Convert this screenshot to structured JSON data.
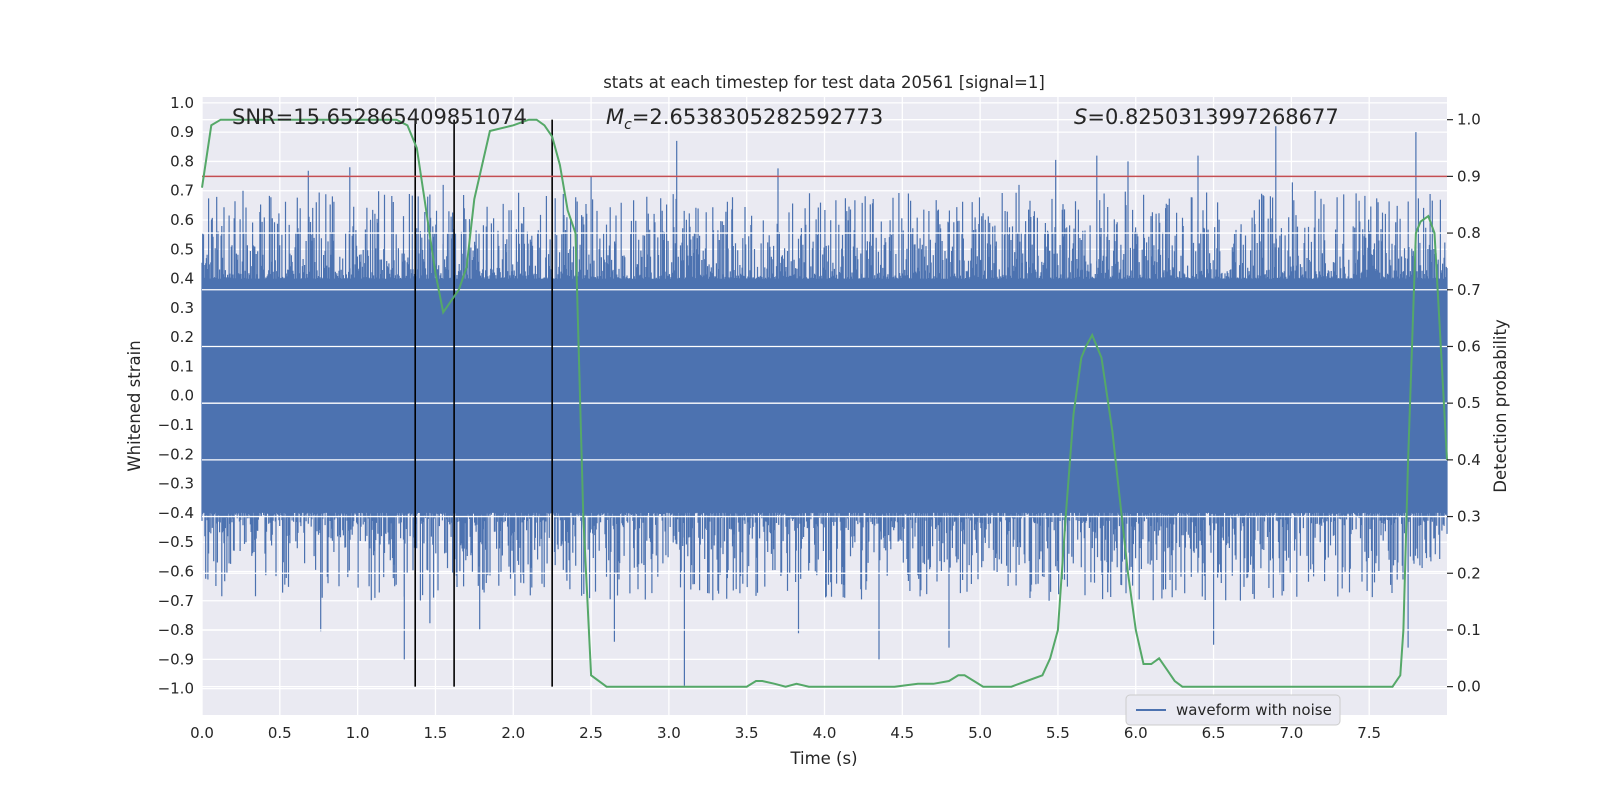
{
  "chart_data": {
    "type": "line",
    "title": "stats at each timestep for test data 20561 [signal=1]",
    "xlabel": "Time (s)",
    "ylabel_left": "Whitened strain",
    "ylabel_right": "Detection probability",
    "xlim": [
      0.0,
      8.0
    ],
    "ylim_left": [
      -1.09,
      1.02
    ],
    "ylim_right": [
      -0.05,
      1.04
    ],
    "x_ticks": [
      "0.0",
      "0.5",
      "1.0",
      "1.5",
      "2.0",
      "2.5",
      "3.0",
      "3.5",
      "4.0",
      "4.5",
      "5.0",
      "5.5",
      "6.0",
      "6.5",
      "7.0",
      "7.5"
    ],
    "x_tick_values": [
      0.0,
      0.5,
      1.0,
      1.5,
      2.0,
      2.5,
      3.0,
      3.5,
      4.0,
      4.5,
      5.0,
      5.5,
      6.0,
      6.5,
      7.0,
      7.5
    ],
    "y_left_ticks": [
      "1.0",
      "0.9",
      "0.8",
      "0.7",
      "0.6",
      "0.5",
      "0.4",
      "0.3",
      "0.2",
      "0.1",
      "0.0",
      "−0.1",
      "−0.2",
      "−0.3",
      "−0.4",
      "−0.5",
      "−0.6",
      "−0.7",
      "−0.8",
      "−0.9",
      "−1.0"
    ],
    "y_left_tick_values": [
      1.0,
      0.9,
      0.8,
      0.7,
      0.6,
      0.5,
      0.4,
      0.3,
      0.2,
      0.1,
      0.0,
      -0.1,
      -0.2,
      -0.3,
      -0.4,
      -0.5,
      -0.6,
      -0.7,
      -0.8,
      -0.9,
      -1.0
    ],
    "y_right_ticks": [
      "1.0",
      "0.9",
      "0.8",
      "0.7",
      "0.6",
      "0.5",
      "0.4",
      "0.3",
      "0.2",
      "0.1",
      "0.0"
    ],
    "y_right_tick_values": [
      1.0,
      0.9,
      0.8,
      0.7,
      0.6,
      0.5,
      0.4,
      0.3,
      0.2,
      0.1,
      0.0
    ],
    "annotations": {
      "snr": "SNR=15.652865409851074",
      "mc_symbol": "M",
      "mc_sub": "c",
      "mc_value": "=2.6538305282592773",
      "s_symbol": "S",
      "s_value": "=0.8250313997268677"
    },
    "threshold": {
      "axis": "right",
      "value": 0.9,
      "color": "#c44e52"
    },
    "vertical_lines": [
      1.37,
      1.62,
      2.25
    ],
    "waveform": {
      "name": "waveform with noise",
      "color": "#4c72b0",
      "band_core": 0.4,
      "spikes": [
        {
          "x": 3.05,
          "y": 0.87
        },
        {
          "x": 6.9,
          "y": 0.92
        },
        {
          "x": 7.8,
          "y": 0.9
        },
        {
          "x": 1.3,
          "y": -0.9
        },
        {
          "x": 3.1,
          "y": -0.99
        },
        {
          "x": 4.35,
          "y": -0.9
        },
        {
          "x": 1.55,
          "y": 0.72
        },
        {
          "x": 0.95,
          "y": 0.78
        },
        {
          "x": 5.75,
          "y": 0.82
        },
        {
          "x": 5.95,
          "y": 0.8
        },
        {
          "x": 6.4,
          "y": 0.82
        },
        {
          "x": 2.5,
          "y": 0.75
        },
        {
          "x": 1.37,
          "y": -0.85
        },
        {
          "x": 2.65,
          "y": -0.84
        },
        {
          "x": 4.8,
          "y": -0.86
        },
        {
          "x": 6.5,
          "y": -0.85
        },
        {
          "x": 7.75,
          "y": -0.86
        },
        {
          "x": 5.25,
          "y": 0.72
        }
      ]
    },
    "detection_probability": {
      "name": "detection probability",
      "color": "#55a868",
      "x": [
        0.0,
        0.06,
        0.12,
        0.3,
        0.6,
        0.9,
        1.1,
        1.25,
        1.32,
        1.38,
        1.43,
        1.5,
        1.55,
        1.6,
        1.65,
        1.7,
        1.75,
        1.85,
        2.0,
        2.1,
        2.15,
        2.2,
        2.25,
        2.3,
        2.35,
        2.4,
        2.45,
        2.5,
        2.6,
        2.8,
        3.0,
        3.2,
        3.4,
        3.5,
        3.56,
        3.6,
        3.68,
        3.75,
        3.82,
        3.9,
        4.0,
        4.1,
        4.2,
        4.3,
        4.45,
        4.6,
        4.7,
        4.8,
        4.86,
        4.9,
        4.96,
        5.02,
        5.1,
        5.2,
        5.3,
        5.4,
        5.45,
        5.5,
        5.55,
        5.6,
        5.65,
        5.68,
        5.72,
        5.78,
        5.85,
        5.95,
        6.0,
        6.05,
        6.1,
        6.15,
        6.2,
        6.25,
        6.3,
        6.4,
        6.5,
        6.7,
        6.8,
        6.9,
        7.0,
        7.1,
        7.2,
        7.3,
        7.4,
        7.5,
        7.6,
        7.65,
        7.7,
        7.72,
        7.75,
        7.8,
        7.83,
        7.88,
        7.92,
        7.96,
        8.0
      ],
      "y": [
        0.88,
        0.99,
        1.0,
        1.0,
        1.0,
        1.0,
        1.0,
        1.0,
        0.99,
        0.95,
        0.86,
        0.73,
        0.66,
        0.68,
        0.7,
        0.74,
        0.86,
        0.98,
        0.99,
        1.0,
        1.0,
        0.99,
        0.97,
        0.92,
        0.84,
        0.8,
        0.3,
        0.02,
        0.0,
        0.0,
        0.0,
        0.0,
        0.0,
        0.0,
        0.01,
        0.01,
        0.005,
        0.0,
        0.005,
        0.0,
        0.0,
        0.0,
        0.0,
        0.0,
        0.0,
        0.005,
        0.005,
        0.01,
        0.02,
        0.02,
        0.01,
        0.0,
        0.0,
        0.0,
        0.01,
        0.02,
        0.05,
        0.1,
        0.3,
        0.48,
        0.58,
        0.6,
        0.62,
        0.58,
        0.45,
        0.2,
        0.1,
        0.04,
        0.04,
        0.05,
        0.03,
        0.01,
        0.0,
        0.0,
        0.0,
        0.0,
        0.0,
        0.0,
        0.0,
        0.0,
        0.0,
        0.0,
        0.0,
        0.0,
        0.0,
        0.0,
        0.02,
        0.1,
        0.4,
        0.8,
        0.82,
        0.83,
        0.8,
        0.6,
        0.4
      ]
    },
    "legend": {
      "placement": "bottom-right",
      "entries": [
        "waveform with noise"
      ]
    }
  }
}
